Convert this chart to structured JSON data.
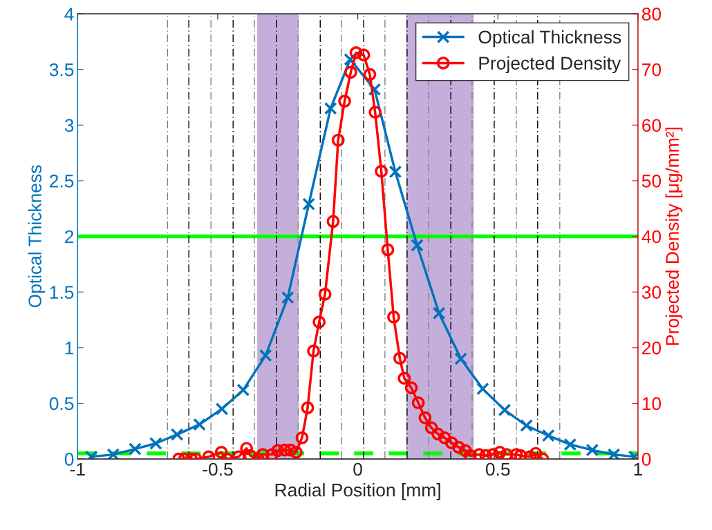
{
  "chart_data": {
    "type": "line",
    "xlabel": "Radial Position [mm]",
    "ylabel": "Optical Thickness",
    "y2label": "Projected Density [μg/mm²]",
    "xlim": [
      -1,
      1
    ],
    "xticks": [
      -1,
      -0.5,
      0,
      0.5,
      1
    ],
    "ylim": [
      0,
      4
    ],
    "yticks": [
      0,
      0.5,
      1,
      1.5,
      2,
      2.5,
      3,
      3.5,
      4
    ],
    "y2lim": [
      0,
      80
    ],
    "y2ticks": [
      0,
      10,
      20,
      30,
      40,
      50,
      60,
      70,
      80
    ],
    "legend": "top right",
    "grid": false,
    "series": [
      {
        "name": "Optical Thickness",
        "color": "#0072bd",
        "marker": "cross",
        "line_style": "solid",
        "x": [
          -0.951,
          -0.873,
          -0.795,
          -0.721,
          -0.645,
          -0.565,
          -0.485,
          -0.409,
          -0.329,
          -0.25,
          -0.175,
          -0.097,
          -0.027,
          0.06,
          0.134,
          0.212,
          0.29,
          0.368,
          0.446,
          0.524,
          0.602,
          0.68,
          0.758,
          0.837,
          0.914,
          0.988
        ],
        "values": [
          0.02,
          0.04,
          0.09,
          0.14,
          0.22,
          0.31,
          0.45,
          0.62,
          0.93,
          1.45,
          2.29,
          3.15,
          3.59,
          3.32,
          2.58,
          1.92,
          1.31,
          0.9,
          0.63,
          0.44,
          0.3,
          0.21,
          0.13,
          0.08,
          0.04,
          0.02
        ]
      },
      {
        "name": "Projected Density",
        "color": "#ff0000",
        "marker": "circle",
        "line_style": "solid",
        "axis": "y2",
        "x": [
          -0.639,
          -0.618,
          -0.594,
          -0.578,
          -0.532,
          -0.487,
          -0.467,
          -0.425,
          -0.397,
          -0.384,
          -0.356,
          -0.339,
          -0.306,
          -0.286,
          -0.261,
          -0.24,
          -0.22,
          -0.199,
          -0.179,
          -0.158,
          -0.138,
          -0.117,
          -0.088,
          -0.07,
          -0.047,
          -0.025,
          -0.006,
          0.021,
          0.043,
          0.062,
          0.084,
          0.107,
          0.128,
          0.15,
          0.166,
          0.191,
          0.216,
          0.24,
          0.263,
          0.286,
          0.31,
          0.335,
          0.36,
          0.384,
          0.401,
          0.433,
          0.457,
          0.482,
          0.507,
          0.531,
          0.566,
          0.581,
          0.615,
          0.635,
          0.66
        ],
        "values": [
          0,
          0,
          0,
          0,
          0.4,
          1.2,
          0,
          0.4,
          1.9,
          0.6,
          0,
          0.8,
          0.8,
          1.5,
          1.6,
          1.6,
          1.2,
          3.8,
          9.2,
          19.4,
          24.6,
          29.6,
          42.7,
          57.3,
          64.3,
          69.5,
          73.0,
          72.6,
          69.1,
          62.3,
          51.7,
          37.6,
          25.5,
          18.1,
          14.5,
          12.8,
          10.1,
          7.4,
          5.6,
          4.5,
          3.8,
          2.9,
          2.1,
          1.5,
          0.6,
          0.8,
          0.6,
          0.8,
          1.2,
          0.8,
          0.8,
          0.6,
          0.4,
          1.0,
          0
        ]
      }
    ],
    "ref_lines": [
      {
        "axis": "y",
        "value": 2,
        "color": "#00ff00",
        "line_style": "solid"
      },
      {
        "axis": "y",
        "value": 0.05,
        "color": "#00ff00",
        "line_style": "dashed"
      },
      {
        "axis": "x",
        "value": -0.679,
        "color": "#808080",
        "line_style": "dashdot"
      },
      {
        "axis": "x",
        "value": -0.603,
        "color": "#000000",
        "line_style": "dashdot"
      },
      {
        "axis": "x",
        "value": -0.524,
        "color": "#808080",
        "line_style": "dashdot"
      },
      {
        "axis": "x",
        "value": -0.445,
        "color": "#000000",
        "line_style": "dashdot"
      },
      {
        "axis": "x",
        "value": -0.369,
        "color": "#808080",
        "line_style": "dashdot"
      },
      {
        "axis": "x",
        "value": -0.29,
        "color": "#000000",
        "line_style": "dashdot"
      },
      {
        "axis": "x",
        "value": -0.213,
        "color": "#808080",
        "line_style": "dashdot"
      },
      {
        "axis": "x",
        "value": -0.134,
        "color": "#000000",
        "line_style": "dashdot"
      },
      {
        "axis": "x",
        "value": -0.058,
        "color": "#808080",
        "line_style": "dashdot"
      },
      {
        "axis": "x",
        "value": 0.021,
        "color": "#000000",
        "line_style": "dashdot"
      },
      {
        "axis": "x",
        "value": 0.097,
        "color": "#808080",
        "line_style": "dashdot"
      },
      {
        "axis": "x",
        "value": 0.176,
        "color": "#000000",
        "line_style": "dashdot"
      },
      {
        "axis": "x",
        "value": 0.253,
        "color": "#808080",
        "line_style": "dashdot"
      },
      {
        "axis": "x",
        "value": 0.332,
        "color": "#000000",
        "line_style": "dashdot"
      },
      {
        "axis": "x",
        "value": 0.408,
        "color": "#808080",
        "line_style": "dashdot"
      },
      {
        "axis": "x",
        "value": 0.487,
        "color": "#000000",
        "line_style": "dashdot"
      },
      {
        "axis": "x",
        "value": 0.566,
        "color": "#808080",
        "line_style": "dashdot"
      },
      {
        "axis": "x",
        "value": 0.642,
        "color": "#000000",
        "line_style": "dashdot"
      },
      {
        "axis": "x",
        "value": 0.721,
        "color": "#808080",
        "line_style": "dashdot"
      }
    ],
    "bands": [
      {
        "axis": "x",
        "from": -0.359,
        "to": -0.211,
        "color": "#8a5fb5"
      },
      {
        "axis": "x",
        "from": 0.173,
        "to": 0.414,
        "color": "#8a5fb5"
      }
    ]
  }
}
